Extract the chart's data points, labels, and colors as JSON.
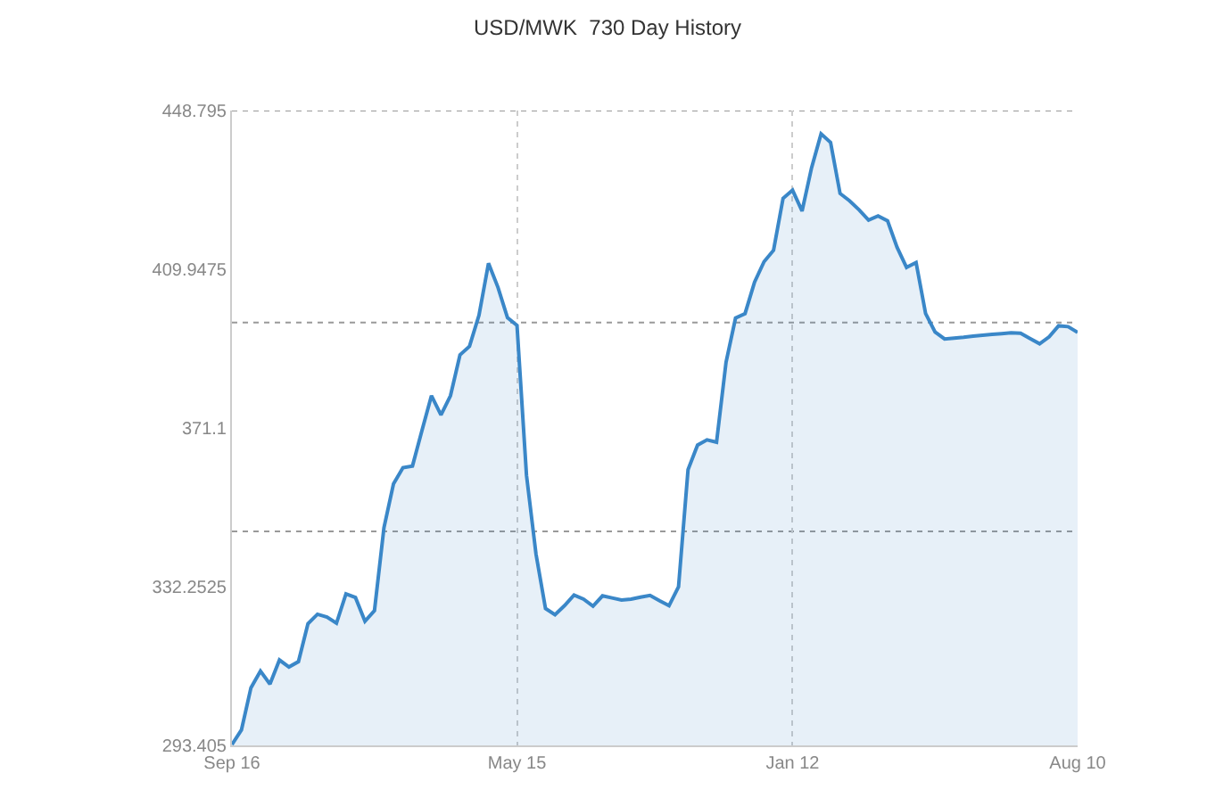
{
  "chart_data": {
    "type": "area",
    "title": "USD/MWK  730 Day History",
    "categories": [
      "Sep 16",
      null,
      null,
      null,
      null,
      null,
      null,
      null,
      null,
      null,
      null,
      null,
      null,
      null,
      null,
      null,
      null,
      null,
      null,
      null,
      null,
      null,
      null,
      null,
      null,
      null,
      null,
      null,
      null,
      null,
      "May 15",
      null,
      null,
      null,
      null,
      null,
      null,
      null,
      null,
      null,
      null,
      null,
      null,
      null,
      null,
      null,
      null,
      null,
      null,
      null,
      null,
      null,
      null,
      null,
      null,
      null,
      null,
      null,
      null,
      "Jan 12",
      null,
      null,
      null,
      null,
      null,
      null,
      null,
      null,
      null,
      null,
      null,
      null,
      null,
      null,
      null,
      null,
      null,
      null,
      null,
      null,
      null,
      null,
      null,
      null,
      null,
      null,
      null,
      null,
      null,
      "Aug 10"
    ],
    "series": [
      {
        "color": "#3a87c8",
        "values": [
          293.6,
          297.2,
          307.5,
          311.6,
          308.4,
          314.3,
          312.6,
          313.9,
          323.2,
          325.5,
          324.8,
          323.3,
          330.5,
          329.6,
          323.8,
          326.4,
          346.7,
          357.4,
          361.4,
          361.8,
          370.5,
          379.0,
          374.3,
          379.0,
          389.0,
          391.1,
          398.7,
          411.4,
          405.5,
          398.1,
          396.2,
          359.5,
          340.2,
          326.9,
          325.4,
          327.6,
          330.2,
          329.2,
          327.5,
          330.0,
          329.5,
          329.0,
          329.2,
          329.7,
          330.1,
          328.8,
          327.6,
          332.2,
          360.9,
          366.9,
          368.2,
          367.6,
          387.2,
          398.0,
          399.1,
          406.8,
          411.8,
          414.6,
          427.3,
          429.3,
          424.2,
          434.8,
          443.1,
          441.0,
          428.5,
          426.7,
          424.5,
          422.0,
          423.0,
          421.8,
          415.3,
          410.4,
          411.6,
          399.1,
          394.6,
          392.9,
          393.1,
          393.3,
          393.6,
          393.8,
          394.0,
          394.2,
          394.4,
          394.3,
          393.0,
          391.7,
          393.4,
          396.1,
          395.9,
          394.5
        ]
      }
    ],
    "ylim": [
      293.405,
      448.795
    ],
    "yticks": [
      293.405,
      332.2525,
      371.1,
      409.9475,
      448.795
    ],
    "ref_lines": [
      {
        "axis": "y",
        "value": 448.795,
        "line_style": "dotted"
      },
      {
        "axis": "y",
        "value": 396.9,
        "line_style": "dotted"
      },
      {
        "axis": "y",
        "value": 345.8,
        "line_style": "dotted"
      }
    ],
    "grid": "x",
    "legend": false,
    "marker": "none",
    "line_style": "solid"
  }
}
